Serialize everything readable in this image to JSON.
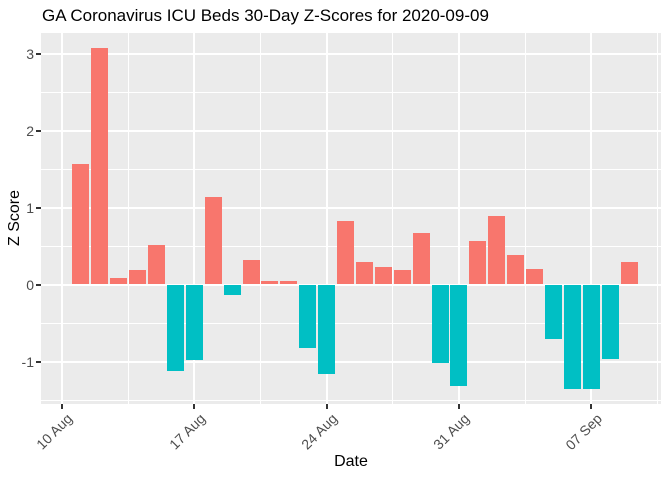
{
  "chart_data": {
    "type": "bar",
    "title": "GA Coronavirus ICU Beds 30-Day Z-Scores for 2020-09-09",
    "xlabel": "Date",
    "ylabel": "Z Score",
    "x": [
      "2020-08-11",
      "2020-08-12",
      "2020-08-13",
      "2020-08-14",
      "2020-08-15",
      "2020-08-16",
      "2020-08-17",
      "2020-08-18",
      "2020-08-19",
      "2020-08-20",
      "2020-08-21",
      "2020-08-22",
      "2020-08-23",
      "2020-08-24",
      "2020-08-25",
      "2020-08-26",
      "2020-08-27",
      "2020-08-28",
      "2020-08-29",
      "2020-08-30",
      "2020-08-31",
      "2020-09-01",
      "2020-09-02",
      "2020-09-03",
      "2020-09-04",
      "2020-09-05",
      "2020-09-06",
      "2020-09-07",
      "2020-09-08",
      "2020-09-09"
    ],
    "values": [
      1.56,
      3.07,
      0.08,
      0.19,
      0.51,
      -1.12,
      -0.98,
      1.13,
      -0.14,
      0.32,
      0.05,
      0.05,
      -0.83,
      -1.16,
      0.83,
      0.29,
      0.23,
      0.19,
      0.67,
      -1.02,
      -1.32,
      0.57,
      0.89,
      0.38,
      0.2,
      -0.71,
      -1.36,
      -1.36,
      -0.97,
      0.29
    ],
    "x_ticks": [
      {
        "label": "10 Aug",
        "date": "2020-08-10"
      },
      {
        "label": "17 Aug",
        "date": "2020-08-17"
      },
      {
        "label": "24 Aug",
        "date": "2020-08-24"
      },
      {
        "label": "31 Aug",
        "date": "2020-08-31"
      },
      {
        "label": "07 Sep",
        "date": "2020-09-07"
      }
    ],
    "y_ticks": [
      {
        "label": "3",
        "value": 3
      },
      {
        "label": "2",
        "value": 2
      },
      {
        "label": "1",
        "value": 1
      },
      {
        "label": "0",
        "value": 0
      },
      {
        "label": "-1",
        "value": -1
      }
    ],
    "ylim": [
      -1.55,
      3.27
    ],
    "grid": true,
    "legend": "none",
    "positive_color": "#F8766D",
    "negative_color": "#00BFC4",
    "panel_background": "#EBEBEB",
    "gridline_color": "#FFFFFF",
    "axis_text_color": "#4D4D4D",
    "title_color": "#000000"
  }
}
